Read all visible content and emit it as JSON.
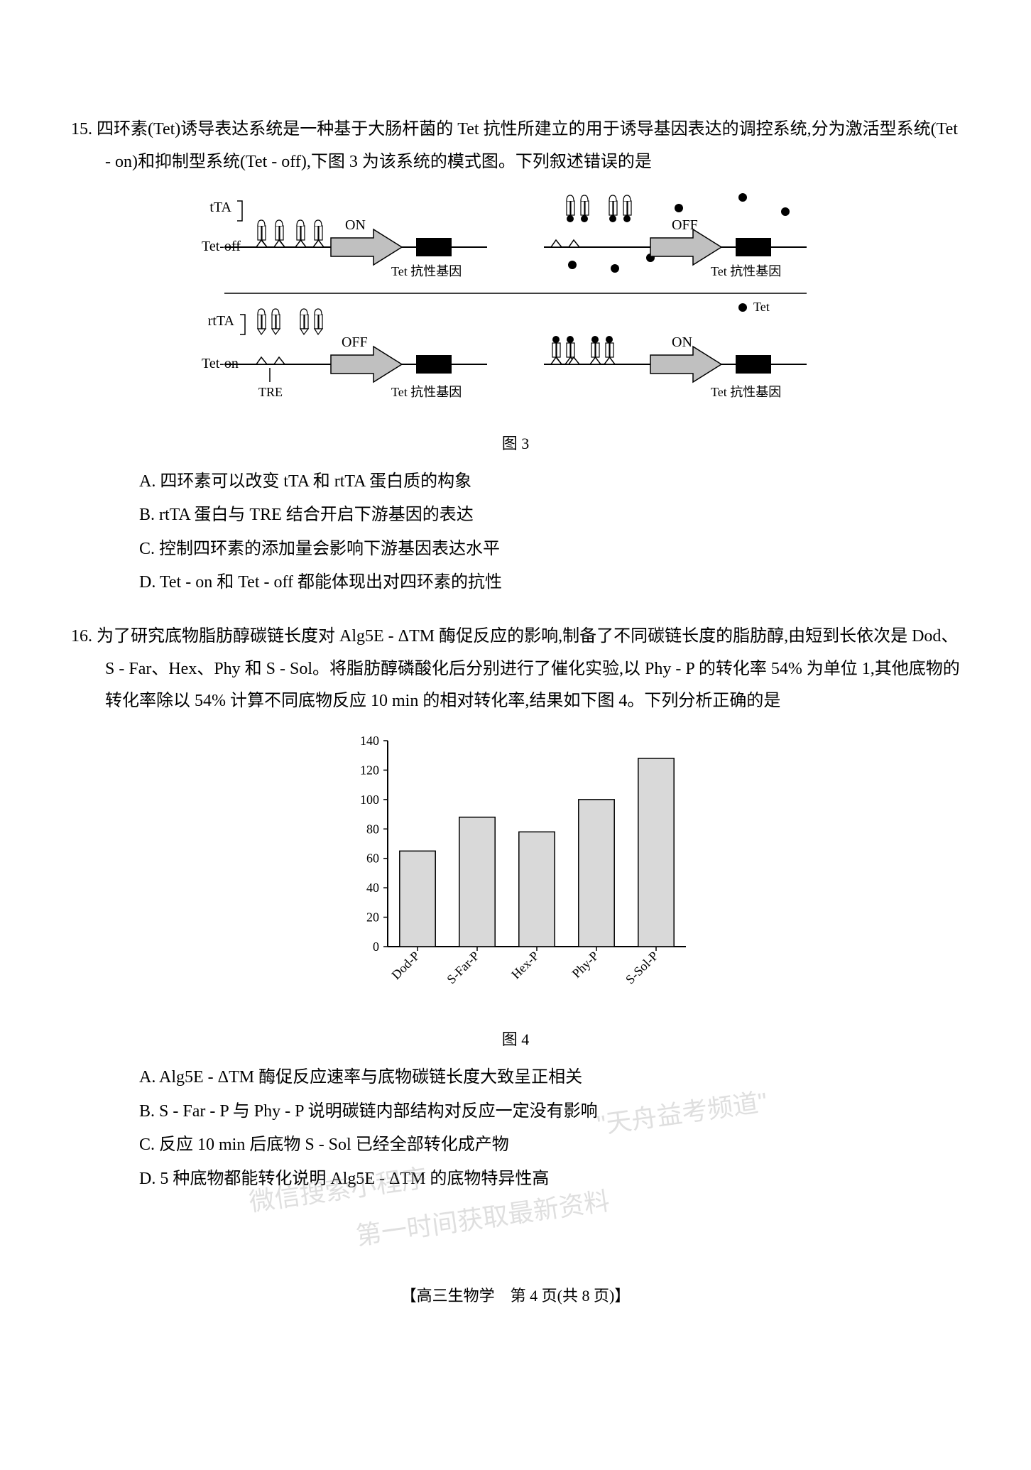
{
  "q15": {
    "number": "15.",
    "stem": "四环素(Tet)诱导表达系统是一种基于大肠杆菌的 Tet 抗性所建立的用于诱导基因表达的调控系统,分为激活型系统(Tet - on)和抑制型系统(Tet - off),下图 3 为该系统的模式图。下列叙述错误的是",
    "figure": {
      "caption": "图 3",
      "labels": {
        "tTA": "tTA",
        "rtTA": "rtTA",
        "tet_off": "Tet-off",
        "tet_on": "Tet-on",
        "on": "ON",
        "off": "OFF",
        "tre": "TRE",
        "tet_resist_gene": "Tet 抗性基因",
        "tet": "Tet"
      },
      "colors": {
        "arrow_fill": "#c0c0c0",
        "arrow_stroke": "#000000",
        "black_box": "#000000",
        "line": "#000000",
        "tet_dot": "#000000",
        "protein_fill": "#ffffff",
        "protein_stroke": "#000000"
      }
    },
    "options": {
      "A": "A. 四环素可以改变 tTA 和 rtTA 蛋白质的构象",
      "B": "B. rtTA 蛋白与 TRE 结合开启下游基因的表达",
      "C": "C. 控制四环素的添加量会影响下游基因表达水平",
      "D": "D. Tet - on 和 Tet - off 都能体现出对四环素的抗性"
    }
  },
  "q16": {
    "number": "16.",
    "stem": "为了研究底物脂肪醇碳链长度对 Alg5E - ΔTM 酶促反应的影响,制备了不同碳链长度的脂肪醇,由短到长依次是 Dod、S - Far、Hex、Phy 和 S - Sol。将脂肪醇磷酸化后分别进行了催化实验,以 Phy - P 的转化率 54% 为单位 1,其他底物的转化率除以 54% 计算不同底物反应 10 min 的相对转化率,结果如下图 4。下列分析正确的是",
    "watermarks": {
      "w1": "\"天舟益考频道\"",
      "w2": "微信搜索小程序",
      "w3": "第一时间获取最新资料"
    },
    "figure": {
      "caption": "图 4",
      "type": "bar",
      "categories": [
        "Dod-P",
        "S-Far-P",
        "Hex-P",
        "Phy-P",
        "S-Sol-P"
      ],
      "values": [
        65,
        88,
        78,
        100,
        128
      ],
      "ylim": [
        0,
        140
      ],
      "ytick_step": 20,
      "bar_fill": "#d9d9d9",
      "bar_stroke": "#000000",
      "axis_color": "#000000",
      "label_fontsize": 18,
      "tick_fontsize": 18,
      "bar_width": 0.6
    },
    "options": {
      "A": "A. Alg5E - ΔTM 酶促反应速率与底物碳链长度大致呈正相关",
      "B": "B. S - Far - P 与 Phy - P 说明碳链内部结构对反应一定没有影响",
      "C": "C. 反应 10 min 后底物 S - Sol 已经全部转化成产物",
      "D": "D. 5 种底物都能转化说明 Alg5E - ΔTM 的底物特异性高"
    }
  },
  "footer": "【高三生物学　第 4 页(共 8 页)】"
}
